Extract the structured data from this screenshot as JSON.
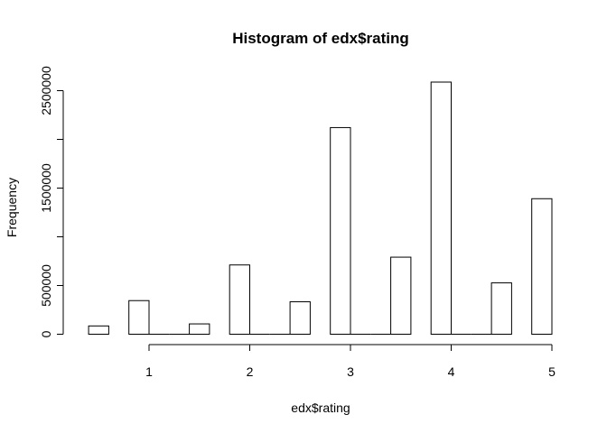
{
  "chart_data": {
    "type": "bar",
    "title": "Histogram of edx$rating",
    "xlabel": "edx$rating",
    "ylabel": "Frequency",
    "xlim": [
      0.35,
      5.1
    ],
    "ylim": [
      0,
      2650000
    ],
    "grid": false,
    "x_ticks": [
      1,
      2,
      3,
      4,
      5
    ],
    "x_tick_labels": [
      "1",
      "2",
      "3",
      "4",
      "5"
    ],
    "y_ticks": [
      0,
      500000,
      1000000,
      1500000,
      2000000,
      2500000
    ],
    "y_tick_labels": [
      "0",
      "500000",
      "",
      "1500000",
      "",
      "2500000"
    ],
    "bars": [
      {
        "x0": 0.4,
        "x1": 0.6,
        "value": 85000
      },
      {
        "x0": 0.8,
        "x1": 1.0,
        "value": 345000
      },
      {
        "x0": 1.0,
        "x1": 1.2,
        "value": 0
      },
      {
        "x0": 1.2,
        "x1": 1.4,
        "value": 0
      },
      {
        "x0": 1.4,
        "x1": 1.6,
        "value": 106000
      },
      {
        "x0": 1.8,
        "x1": 2.0,
        "value": 711000
      },
      {
        "x0": 2.0,
        "x1": 2.2,
        "value": 0
      },
      {
        "x0": 2.2,
        "x1": 2.4,
        "value": 0
      },
      {
        "x0": 2.4,
        "x1": 2.6,
        "value": 333000
      },
      {
        "x0": 2.8,
        "x1": 3.0,
        "value": 2121000
      },
      {
        "x0": 3.0,
        "x1": 3.2,
        "value": 0
      },
      {
        "x0": 3.2,
        "x1": 3.4,
        "value": 0
      },
      {
        "x0": 3.4,
        "x1": 3.6,
        "value": 791000
      },
      {
        "x0": 3.8,
        "x1": 4.0,
        "value": 2588000
      },
      {
        "x0": 4.0,
        "x1": 4.2,
        "value": 0
      },
      {
        "x0": 4.2,
        "x1": 4.4,
        "value": 0
      },
      {
        "x0": 4.4,
        "x1": 4.6,
        "value": 527000
      },
      {
        "x0": 4.8,
        "x1": 5.0,
        "value": 1391000
      }
    ]
  }
}
